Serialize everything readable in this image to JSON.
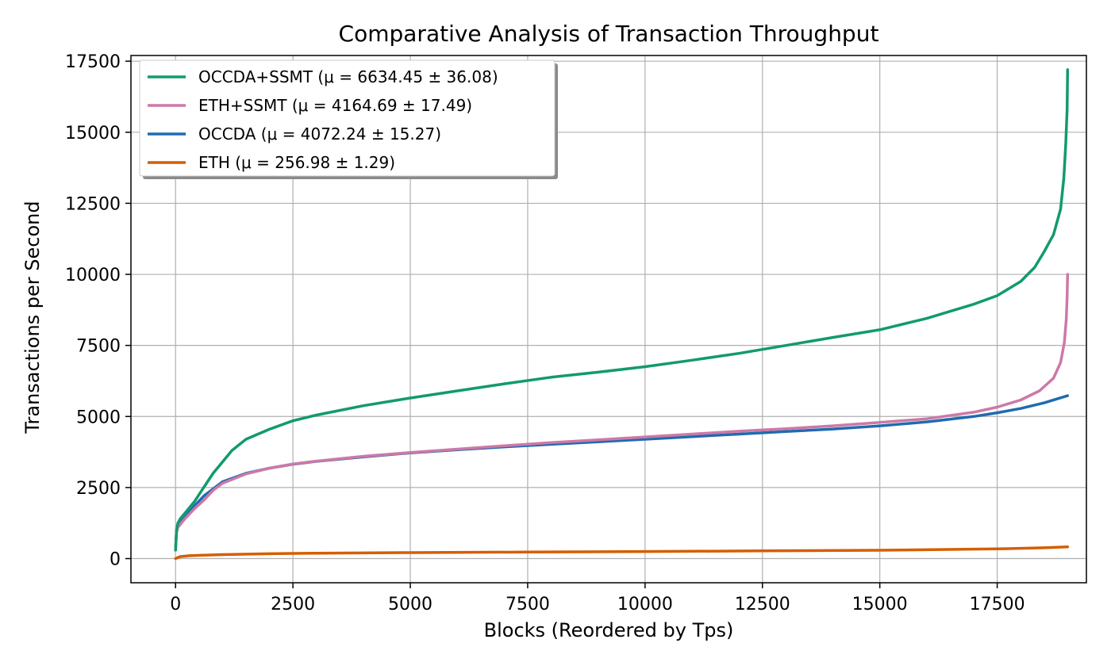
{
  "chart_data": {
    "type": "line",
    "title": "Comparative Analysis of Transaction Throughput",
    "xlabel": "Blocks (Reordered by Tps)",
    "ylabel": "Transactions per Second",
    "xlim": [
      -950,
      19400
    ],
    "ylim": [
      -850,
      17700
    ],
    "xticks": [
      0,
      2500,
      5000,
      7500,
      10000,
      12500,
      15000,
      17500
    ],
    "yticks": [
      0,
      2500,
      5000,
      7500,
      10000,
      12500,
      15000,
      17500
    ],
    "xtick_labels": [
      "0",
      "2500",
      "5000",
      "7500",
      "10000",
      "12500",
      "15000",
      "17500"
    ],
    "ytick_labels": [
      "0",
      "2500",
      "5000",
      "7500",
      "10000",
      "12500",
      "15000",
      "17500"
    ],
    "grid": true,
    "legend_position": "top-left",
    "series": [
      {
        "name": "OCCDA+SSMT (μ = 6634.45 ± 36.08)",
        "color": "#129a6e",
        "x": [
          0,
          20,
          50,
          100,
          200,
          400,
          600,
          800,
          1000,
          1200,
          1500,
          2000,
          2500,
          3000,
          4000,
          5000,
          6000,
          7000,
          8000,
          9000,
          10000,
          11000,
          12000,
          13000,
          14000,
          15000,
          16000,
          17000,
          17500,
          18000,
          18300,
          18500,
          18700,
          18850,
          18920,
          18960,
          18990,
          19000
        ],
        "y": [
          300,
          1000,
          1250,
          1400,
          1600,
          2000,
          2500,
          3000,
          3400,
          3800,
          4200,
          4550,
          4850,
          5050,
          5380,
          5650,
          5900,
          6150,
          6380,
          6560,
          6750,
          6980,
          7220,
          7500,
          7780,
          8050,
          8450,
          8950,
          9250,
          9750,
          10250,
          10800,
          11400,
          12300,
          13400,
          14600,
          15800,
          17200
        ]
      },
      {
        "name": "ETH+SSMT (μ = 4164.69 ± 17.49)",
        "color": "#cc79a7",
        "x": [
          0,
          20,
          50,
          100,
          200,
          400,
          600,
          800,
          1000,
          1500,
          2000,
          2500,
          3000,
          4000,
          5000,
          6000,
          7000,
          8000,
          9000,
          10000,
          11000,
          12000,
          13000,
          14000,
          15000,
          16000,
          17000,
          17500,
          18000,
          18400,
          18700,
          18850,
          18930,
          18970,
          18990,
          19000
        ],
        "y": [
          300,
          900,
          1100,
          1200,
          1400,
          1750,
          2050,
          2400,
          2650,
          2980,
          3180,
          3330,
          3430,
          3600,
          3730,
          3850,
          3970,
          4080,
          4180,
          4280,
          4380,
          4480,
          4570,
          4670,
          4790,
          4920,
          5150,
          5330,
          5580,
          5900,
          6350,
          6900,
          7600,
          8400,
          9200,
          10000
        ]
      },
      {
        "name": "OCCDA (μ = 4072.24 ± 15.27)",
        "color": "#1f6bb0",
        "x": [
          0,
          20,
          50,
          100,
          200,
          400,
          600,
          800,
          1000,
          1500,
          2000,
          2500,
          3000,
          4000,
          5000,
          6000,
          7000,
          8000,
          9000,
          10000,
          11000,
          12000,
          13000,
          14000,
          15000,
          16000,
          17000,
          17500,
          18000,
          18500,
          19000
        ],
        "y": [
          300,
          950,
          1150,
          1250,
          1450,
          1850,
          2200,
          2450,
          2700,
          3000,
          3180,
          3320,
          3420,
          3580,
          3720,
          3830,
          3930,
          4020,
          4110,
          4200,
          4290,
          4380,
          4470,
          4560,
          4670,
          4810,
          5000,
          5130,
          5280,
          5480,
          5730
        ]
      },
      {
        "name": "ETH (μ = 256.98 ± 1.29)",
        "color": "#d55e00",
        "x": [
          0,
          100,
          300,
          600,
          1000,
          2000,
          3000,
          5000,
          7500,
          10000,
          12500,
          15000,
          17500,
          18500,
          19000
        ],
        "y": [
          0,
          70,
          100,
          120,
          140,
          170,
          190,
          210,
          230,
          250,
          270,
          295,
          340,
          380,
          410
        ]
      }
    ]
  }
}
